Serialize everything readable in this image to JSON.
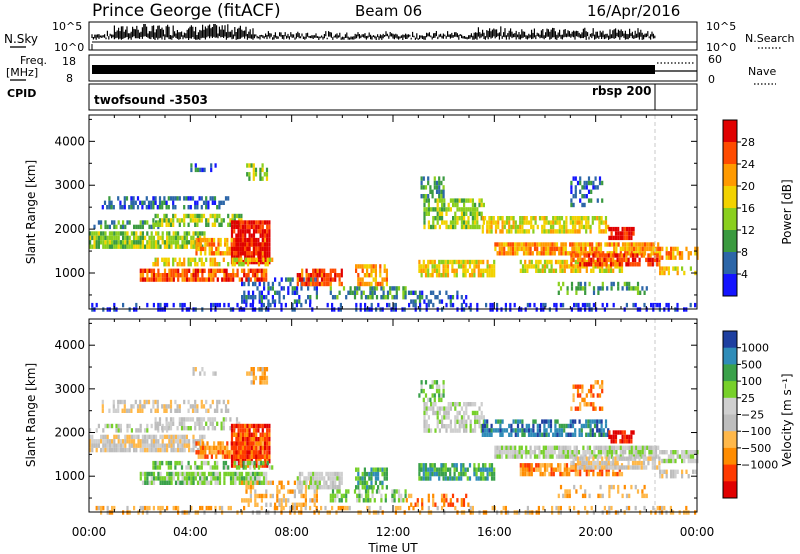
{
  "header": {
    "station": "Prince George (fitACF)",
    "beam": "Beam 06",
    "date": "16/Apr/2016"
  },
  "strip": {
    "nsky_label": "N.Sky",
    "nsky_ticks": [
      "10^5",
      "10^0"
    ],
    "nsearch_label": "N.Search",
    "nsearch_ticks": [
      "10^5",
      "10^0"
    ],
    "freq_label": "Freq.",
    "freq_unit": "[MHz]",
    "freq_ticks": [
      "18",
      "8"
    ],
    "nave_label": "Nave",
    "nave_ticks": [
      "60",
      "0"
    ],
    "cpid_label": "CPID",
    "cpid_mode1": "twofsound -3503",
    "cpid_mode2": "rbsp 200"
  },
  "chart_data": [
    {
      "type": "heatmap",
      "name": "power",
      "ylabel": "Slant Range [km]",
      "yticks": [
        1000,
        2000,
        3000,
        4000
      ],
      "ylim": [
        180,
        4600
      ],
      "xlabel": "Time UT",
      "xticks": [
        "00:00",
        "04:00",
        "08:00",
        "12:00",
        "16:00",
        "20:00",
        "00:00"
      ],
      "xlim_hours": [
        0,
        24
      ],
      "colorbar_label": "Power [dB]",
      "colorbar_ticks": [
        "28",
        "24",
        "20",
        "16",
        "12",
        "8",
        "4"
      ],
      "colorbar_colors": [
        "#e00000",
        "#ff4b00",
        "#ff9a00",
        "#f2d200",
        "#8acf1e",
        "#3a9a3f",
        "#2c66a8",
        "#1414ff"
      ]
    },
    {
      "type": "heatmap",
      "name": "velocity",
      "ylabel": "Slant Range [km]",
      "yticks": [
        1000,
        2000,
        3000,
        4000
      ],
      "ylim": [
        180,
        4600
      ],
      "xlabel": "Time UT",
      "xticks": [
        "00:00",
        "04:00",
        "08:00",
        "12:00",
        "16:00",
        "20:00",
        "00:00"
      ],
      "xlim_hours": [
        0,
        24
      ],
      "colorbar_label": "Velocity [m s⁻¹]",
      "colorbar_ticks": [
        "1000",
        "500",
        "100",
        "25",
        "−25",
        "−100",
        "−500",
        "−1000"
      ],
      "colorbar_colors": [
        "#1e3fa0",
        "#2f8cb8",
        "#3aa14a",
        "#77d02a",
        "#cfcfcf",
        "#bdbdbd",
        "#ffb84a",
        "#ff8c00",
        "#ff3a00",
        "#e00000"
      ]
    }
  ],
  "colors": {
    "ground_scatter": "#9a9a9a",
    "gs_dashed_line": "#c8c8c8"
  }
}
